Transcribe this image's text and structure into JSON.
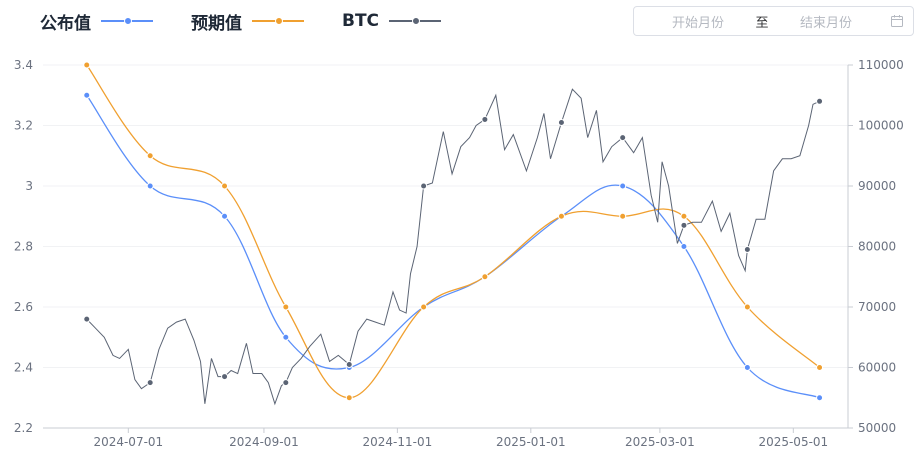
{
  "legend": {
    "s1": "公布值",
    "s2": "预期值",
    "s3": "BTC"
  },
  "date_picker": {
    "start_placeholder": "开始月份",
    "separator": "至",
    "end_placeholder": "结束月份",
    "icon": "calendar-icon"
  },
  "colors": {
    "published": "#5b8ff9",
    "expected": "#f0a030",
    "btc": "#5b6474",
    "axis_text": "#6b7280",
    "axis_line": "#c9ccd3",
    "grid": "#f1f2f4"
  },
  "chart_data": {
    "type": "line",
    "x_axis_type": "date",
    "x_ticks": [
      "2024-07-01",
      "2024-09-01",
      "2024-11-01",
      "2025-01-01",
      "2025-03-01",
      "2025-05-01"
    ],
    "x_range": [
      "2024-05-23",
      "2025-05-26"
    ],
    "y_left": {
      "range": [
        2.2,
        3.4
      ],
      "ticks": [
        "3.4",
        "3.2",
        "3",
        "2.8",
        "2.6",
        "2.4",
        "2.2"
      ]
    },
    "y_right": {
      "range": [
        50000,
        110000
      ],
      "ticks": [
        "110000",
        "100000",
        "90000",
        "80000",
        "70000",
        "60000",
        "50000"
      ]
    },
    "series": [
      {
        "name": "公布值",
        "axis": "left",
        "smooth": true,
        "points": [
          [
            "2024-06-12",
            3.3
          ],
          [
            "2024-07-11",
            3.0
          ],
          [
            "2024-08-14",
            2.9
          ],
          [
            "2024-09-11",
            2.5
          ],
          [
            "2024-10-10",
            2.4
          ],
          [
            "2024-11-13",
            2.6
          ],
          [
            "2024-12-11",
            2.7
          ],
          [
            "2025-01-15",
            2.9
          ],
          [
            "2025-02-12",
            3.0
          ],
          [
            "2025-03-12",
            2.8
          ],
          [
            "2025-04-10",
            2.4
          ],
          [
            "2025-05-13",
            2.3
          ]
        ]
      },
      {
        "name": "预期值",
        "axis": "left",
        "smooth": true,
        "points": [
          [
            "2024-06-12",
            3.4
          ],
          [
            "2024-07-11",
            3.1
          ],
          [
            "2024-08-14",
            3.0
          ],
          [
            "2024-09-11",
            2.6
          ],
          [
            "2024-10-10",
            2.3
          ],
          [
            "2024-11-13",
            2.6
          ],
          [
            "2024-12-11",
            2.7
          ],
          [
            "2025-01-15",
            2.9
          ],
          [
            "2025-02-12",
            2.9
          ],
          [
            "2025-03-12",
            2.9
          ],
          [
            "2025-04-10",
            2.6
          ],
          [
            "2025-05-13",
            2.4
          ]
        ]
      },
      {
        "name": "BTC",
        "axis": "right",
        "smooth": false,
        "markers": [
          [
            "2024-06-12",
            68000
          ],
          [
            "2024-07-11",
            57500
          ],
          [
            "2024-08-14",
            58500
          ],
          [
            "2024-09-11",
            57500
          ],
          [
            "2024-10-10",
            60500
          ],
          [
            "2024-11-13",
            90000
          ],
          [
            "2024-12-11",
            101000
          ],
          [
            "2025-01-15",
            100500
          ],
          [
            "2025-02-12",
            98000
          ],
          [
            "2025-03-12",
            83500
          ],
          [
            "2025-04-10",
            79500
          ],
          [
            "2025-05-13",
            104000
          ]
        ],
        "points": [
          [
            "2024-06-12",
            68000
          ],
          [
            "2024-06-16",
            66500
          ],
          [
            "2024-06-20",
            65000
          ],
          [
            "2024-06-24",
            62000
          ],
          [
            "2024-06-27",
            61500
          ],
          [
            "2024-07-01",
            63000
          ],
          [
            "2024-07-04",
            58000
          ],
          [
            "2024-07-07",
            56500
          ],
          [
            "2024-07-11",
            57500
          ],
          [
            "2024-07-15",
            63000
          ],
          [
            "2024-07-19",
            66500
          ],
          [
            "2024-07-23",
            67500
          ],
          [
            "2024-07-27",
            68000
          ],
          [
            "2024-07-31",
            64500
          ],
          [
            "2024-08-03",
            61000
          ],
          [
            "2024-08-05",
            54000
          ],
          [
            "2024-08-08",
            61500
          ],
          [
            "2024-08-11",
            58500
          ],
          [
            "2024-08-14",
            58500
          ],
          [
            "2024-08-17",
            59500
          ],
          [
            "2024-08-20",
            59000
          ],
          [
            "2024-08-24",
            64000
          ],
          [
            "2024-08-27",
            59000
          ],
          [
            "2024-08-31",
            59000
          ],
          [
            "2024-09-03",
            57500
          ],
          [
            "2024-09-06",
            54000
          ],
          [
            "2024-09-09",
            57000
          ],
          [
            "2024-09-11",
            57500
          ],
          [
            "2024-09-14",
            60000
          ],
          [
            "2024-09-18",
            61500
          ],
          [
            "2024-09-22",
            63500
          ],
          [
            "2024-09-27",
            65500
          ],
          [
            "2024-10-01",
            61000
          ],
          [
            "2024-10-05",
            62000
          ],
          [
            "2024-10-10",
            60500
          ],
          [
            "2024-10-14",
            66000
          ],
          [
            "2024-10-18",
            68000
          ],
          [
            "2024-10-22",
            67500
          ],
          [
            "2024-10-26",
            67000
          ],
          [
            "2024-10-30",
            72500
          ],
          [
            "2024-11-02",
            69500
          ],
          [
            "2024-11-05",
            69000
          ],
          [
            "2024-11-07",
            75500
          ],
          [
            "2024-11-10",
            80000
          ],
          [
            "2024-11-13",
            90000
          ],
          [
            "2024-11-17",
            90500
          ],
          [
            "2024-11-22",
            99000
          ],
          [
            "2024-11-26",
            92000
          ],
          [
            "2024-11-30",
            96500
          ],
          [
            "2024-12-04",
            98000
          ],
          [
            "2024-12-07",
            100000
          ],
          [
            "2024-12-11",
            101000
          ],
          [
            "2024-12-16",
            105000
          ],
          [
            "2024-12-20",
            96000
          ],
          [
            "2024-12-24",
            98500
          ],
          [
            "2024-12-30",
            92500
          ],
          [
            "2025-01-04",
            98000
          ],
          [
            "2025-01-07",
            102000
          ],
          [
            "2025-01-10",
            94500
          ],
          [
            "2025-01-15",
            100500
          ],
          [
            "2025-01-20",
            106000
          ],
          [
            "2025-01-24",
            104500
          ],
          [
            "2025-01-27",
            98000
          ],
          [
            "2025-01-31",
            102500
          ],
          [
            "2025-02-03",
            94000
          ],
          [
            "2025-02-07",
            96500
          ],
          [
            "2025-02-12",
            98000
          ],
          [
            "2025-02-17",
            95500
          ],
          [
            "2025-02-21",
            98000
          ],
          [
            "2025-02-25",
            88500
          ],
          [
            "2025-02-28",
            84000
          ],
          [
            "2025-03-02",
            94000
          ],
          [
            "2025-03-05",
            90000
          ],
          [
            "2025-03-09",
            80500
          ],
          [
            "2025-03-12",
            83500
          ],
          [
            "2025-03-16",
            84000
          ],
          [
            "2025-03-20",
            84000
          ],
          [
            "2025-03-25",
            87500
          ],
          [
            "2025-03-29",
            82500
          ],
          [
            "2025-04-02",
            85500
          ],
          [
            "2025-04-06",
            78500
          ],
          [
            "2025-04-09",
            76000
          ],
          [
            "2025-04-10",
            79500
          ],
          [
            "2025-04-14",
            84500
          ],
          [
            "2025-04-18",
            84500
          ],
          [
            "2025-04-22",
            92500
          ],
          [
            "2025-04-26",
            94500
          ],
          [
            "2025-04-30",
            94500
          ],
          [
            "2025-05-04",
            95000
          ],
          [
            "2025-05-08",
            100000
          ],
          [
            "2025-05-10",
            103500
          ],
          [
            "2025-05-13",
            104000
          ]
        ]
      }
    ]
  }
}
